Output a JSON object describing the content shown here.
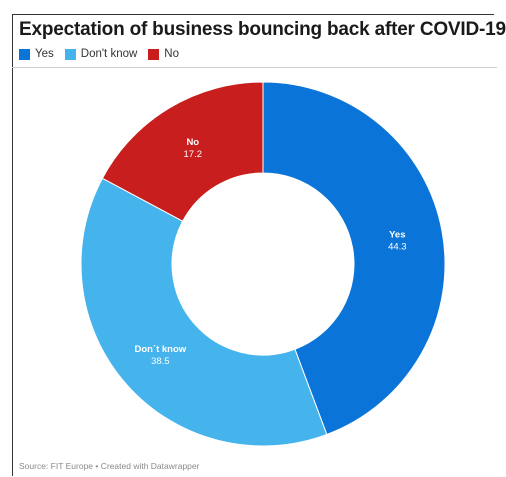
{
  "chart_data": {
    "type": "pie",
    "title": "Expectation of business bouncing back after COVID-19",
    "categories": [
      "Yes",
      "Don't know",
      "No"
    ],
    "values": [
      44.3,
      38.5,
      17.2
    ],
    "slice_labels": [
      "Yes",
      "Don´t know",
      "No"
    ],
    "value_labels": [
      "44.3",
      "38.5",
      "17.2"
    ],
    "colors": [
      "#0a74d8",
      "#45b3ec",
      "#c81e1e"
    ],
    "donut": true,
    "legend": "top-left"
  },
  "footer": {
    "source": "Source: FIT Europe • Created with Datawrapper"
  }
}
